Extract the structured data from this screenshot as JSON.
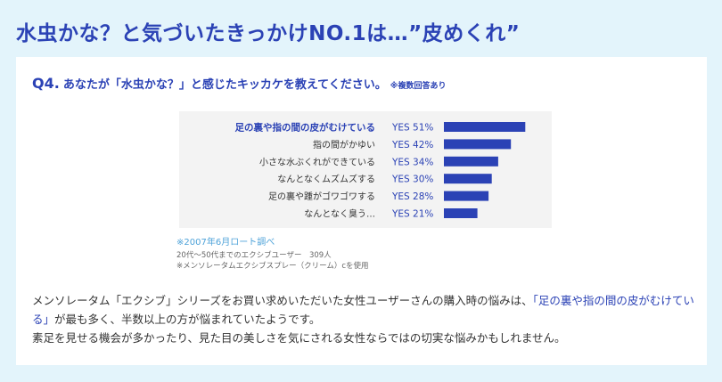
{
  "page": {
    "title": "水虫かな？と気づいたきっかけNO.1は…”皮めくれ”"
  },
  "question": {
    "number": "Q4.",
    "text": "あなたが「水虫かな？」と感じたキッカケを教えてください。",
    "note": "※複数回答あり"
  },
  "chart_data": {
    "type": "bar",
    "orientation": "horizontal",
    "categories": [
      "足の裏や指の間の皮がむけている",
      "指の間がかゆい",
      "小さな水ぶくれができている",
      "なんとなくムズムズする",
      "足の裏や踵がゴワゴワする",
      "なんとなく臭う…"
    ],
    "values": [
      51,
      42,
      34,
      30,
      28,
      21
    ],
    "value_labels": [
      "YES 51%",
      "YES 42%",
      "YES 34%",
      "YES 30%",
      "YES 28%",
      "YES 21%"
    ],
    "unit": "%",
    "bar_color": "#2b42b5",
    "highlight_color": "#2b42b5"
  },
  "source": {
    "line1": "※2007年6月ロート調べ",
    "line2": "20代〜50代までのエクシブユーザー　309人",
    "line3": "※メンソレータムエクシブスプレー（クリーム）cを使用"
  },
  "body": {
    "part1": "メンソレータム「エクシブ」シリーズをお買い求めいただいた女性ユーザーさんの購入時の悩みは、",
    "highlight": "「足の裏や指の間の皮がむけている」",
    "part2": "が最も多く、半数以上の方が悩まれていたようです。",
    "line2": "素足を見せる機会が多かったり、見た目の美しさを気にされる女性ならではの切実な悩みかもしれません。"
  },
  "colors": {
    "background": "#e3f4fb",
    "accent": "#2b42b5",
    "source_text": "#4fa3d9"
  }
}
